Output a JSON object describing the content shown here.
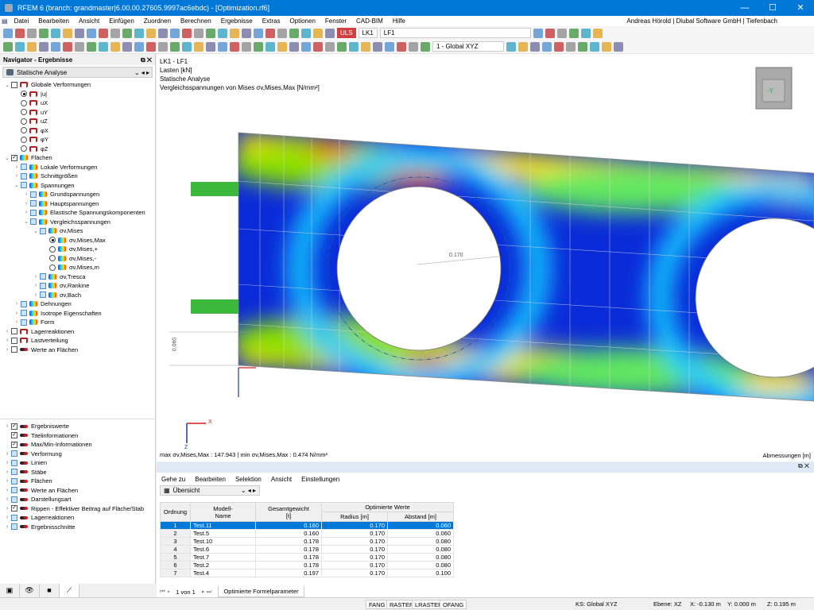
{
  "app": {
    "title": "RFEM 6 (branch: grandmaster|6.00.00.27605.9997ac6ebdc) - [Optimization.rf6]",
    "user": "Andreas Hörold | Dlubal Software GmbH | Tiefenbach"
  },
  "menu": [
    "Datei",
    "Bearbeiten",
    "Ansicht",
    "Einfügen",
    "Zuordnen",
    "Berechnen",
    "Ergebnisse",
    "Extras",
    "Optionen",
    "Fenster",
    "CAD-BIM",
    "Hilfe"
  ],
  "toolbar": {
    "uls_badge": "ULS",
    "lk": "LK1",
    "lf": "LF1",
    "cs": "1 - Global XYZ"
  },
  "navigator": {
    "title": "Navigator - Ergebnisse",
    "combo": "Statische Analyse",
    "tree": [
      {
        "level": 0,
        "chev": "v",
        "ctrl": "cb",
        "icon": "def",
        "label": "Globale Verformungen"
      },
      {
        "level": 1,
        "ctrl": "rb-on",
        "icon": "def",
        "label": "|u|"
      },
      {
        "level": 1,
        "ctrl": "rb",
        "icon": "def",
        "label": "uX"
      },
      {
        "level": 1,
        "ctrl": "rb",
        "icon": "def",
        "label": "uY"
      },
      {
        "level": 1,
        "ctrl": "rb",
        "icon": "def",
        "label": "uZ"
      },
      {
        "level": 1,
        "ctrl": "rb",
        "icon": "def",
        "label": "φX"
      },
      {
        "level": 1,
        "ctrl": "rb",
        "icon": "def",
        "label": "φY"
      },
      {
        "level": 1,
        "ctrl": "rb",
        "icon": "def",
        "label": "φZ"
      },
      {
        "level": 0,
        "chev": "v",
        "ctrl": "cb-on",
        "icon": "surf",
        "label": "Flächen"
      },
      {
        "level": 1,
        "chev": ">",
        "ctrl": "cbb",
        "icon": "surf",
        "label": "Lokale Verformungen"
      },
      {
        "level": 1,
        "chev": ">",
        "ctrl": "cbb",
        "icon": "surf",
        "label": "Schnittgrößen"
      },
      {
        "level": 1,
        "chev": "v",
        "ctrl": "cbb",
        "icon": "surf",
        "label": "Spannungen"
      },
      {
        "level": 2,
        "chev": ">",
        "ctrl": "cbb",
        "icon": "surf",
        "label": "Grundspannungen"
      },
      {
        "level": 2,
        "chev": ">",
        "ctrl": "cbb",
        "icon": "surf",
        "label": "Hauptspannungen"
      },
      {
        "level": 2,
        "chev": ">",
        "ctrl": "cbb",
        "icon": "surf",
        "label": "Elastische Spannungskomponenten"
      },
      {
        "level": 2,
        "chev": "v",
        "ctrl": "cbb",
        "icon": "surf",
        "label": "Vergleichsspannungen"
      },
      {
        "level": 3,
        "chev": "v",
        "ctrl": "cbb",
        "icon": "surf",
        "label": "σv,Mises"
      },
      {
        "level": 4,
        "ctrl": "rb-on",
        "icon": "surf",
        "label": "σv,Mises,Max"
      },
      {
        "level": 4,
        "ctrl": "rb",
        "icon": "surf",
        "label": "σv,Mises,+"
      },
      {
        "level": 4,
        "ctrl": "rb",
        "icon": "surf",
        "label": "σv,Mises,-"
      },
      {
        "level": 4,
        "ctrl": "rb",
        "icon": "surf",
        "label": "σv,Mises,m"
      },
      {
        "level": 3,
        "chev": ">",
        "ctrl": "cbb",
        "icon": "surf",
        "label": "σv,Tresca"
      },
      {
        "level": 3,
        "chev": ">",
        "ctrl": "cbb",
        "icon": "surf",
        "label": "σv,Rankine"
      },
      {
        "level": 3,
        "chev": ">",
        "ctrl": "cbb",
        "icon": "surf",
        "label": "σv,Bach"
      },
      {
        "level": 1,
        "chev": ">",
        "ctrl": "cbb",
        "icon": "surf",
        "label": "Dehnungen"
      },
      {
        "level": 1,
        "chev": ">",
        "ctrl": "cbb",
        "icon": "surf",
        "label": "Isotrope Eigenschaften"
      },
      {
        "level": 1,
        "chev": ">",
        "ctrl": "cbb",
        "icon": "surf",
        "label": "Form"
      },
      {
        "level": 0,
        "chev": ">",
        "ctrl": "cb",
        "icon": "def",
        "label": "Lagerreaktionen"
      },
      {
        "level": 0,
        "chev": ">",
        "ctrl": "cb",
        "icon": "def",
        "label": "Lastverteilung"
      },
      {
        "level": 0,
        "chev": ">",
        "ctrl": "cb",
        "icon": "disp",
        "label": "Werte an Flächen"
      }
    ],
    "display": [
      {
        "chev": ">",
        "ctrl": "cb-on",
        "label": "Ergebniswerte"
      },
      {
        "chev": "",
        "ctrl": "cb-on",
        "label": "Titelinformationen"
      },
      {
        "chev": "",
        "ctrl": "cb-on",
        "label": "Max/Min-Informationen"
      },
      {
        "chev": ">",
        "ctrl": "cbb",
        "label": "Verformung"
      },
      {
        "chev": ">",
        "ctrl": "cbb",
        "label": "Linien"
      },
      {
        "chev": ">",
        "ctrl": "cbb",
        "label": "Stäbe"
      },
      {
        "chev": ">",
        "ctrl": "cbb",
        "label": "Flächen"
      },
      {
        "chev": ">",
        "ctrl": "cbb",
        "label": "Werte an Flächen"
      },
      {
        "chev": ">",
        "ctrl": "cbb",
        "label": "Darstellungsart"
      },
      {
        "chev": ">",
        "ctrl": "cb-on",
        "label": "Rippen - Effektiver Beitrag auf Fläche/Stab"
      },
      {
        "chev": ">",
        "ctrl": "cbb",
        "label": "Lagerreaktionen"
      },
      {
        "chev": ">",
        "ctrl": "cbb",
        "label": "Ergebnisschnitte"
      }
    ]
  },
  "view": {
    "info": [
      "LK1 - LF1",
      "Lasten [kN]",
      "Statische Analyse",
      "Vergleichsspannungen von Mises σv,Mises,Max [N/mm²]"
    ],
    "maxmin": "max σv,Mises,Max : 147.943 | min σv,Mises,Max : 0.474 N/mm²",
    "dims": "Abmessungen [m]",
    "radius_label": "0.170",
    "gap_label": "0.060",
    "cube_label": "-Y",
    "axis_x": "X",
    "axis_z": "Z"
  },
  "bottom": {
    "menu": [
      "Gehe zu",
      "Bearbeiten",
      "Selektion",
      "Ansicht",
      "Einstellungen"
    ],
    "combo": "Übersicht",
    "headers": {
      "ord": "Ordnung",
      "name": "Modell-\nName",
      "weight": "Gesamtgewicht\n[t]",
      "group": "Optimierte Werte",
      "radius": "Radius [m]",
      "gap": "Abstand [m]"
    },
    "rows": [
      [
        "1",
        "Test.11",
        "0.160",
        "0.170",
        "0.060"
      ],
      [
        "2",
        "Test.5",
        "0.160",
        "0.170",
        "0.060"
      ],
      [
        "3",
        "Test.10",
        "0.178",
        "0.170",
        "0.080"
      ],
      [
        "4",
        "Test.6",
        "0.178",
        "0.170",
        "0.080"
      ],
      [
        "5",
        "Test.7",
        "0.178",
        "0.170",
        "0.080"
      ],
      [
        "6",
        "Test.2",
        "0.178",
        "0.170",
        "0.080"
      ],
      [
        "7",
        "Test.4",
        "0.197",
        "0.170",
        "0.100"
      ]
    ],
    "pager": "1 von 1",
    "tab": "Optimierte Formelparameter"
  },
  "status": {
    "buttons": [
      "FANG",
      "RASTER",
      "LRASTER",
      "OFANG"
    ],
    "cs": "KS: Global XYZ",
    "plane": "Ebene: XZ",
    "x": "X: -0.130 m",
    "y": "Y: 0.000 m",
    "z": "Z: 0.195 m"
  }
}
